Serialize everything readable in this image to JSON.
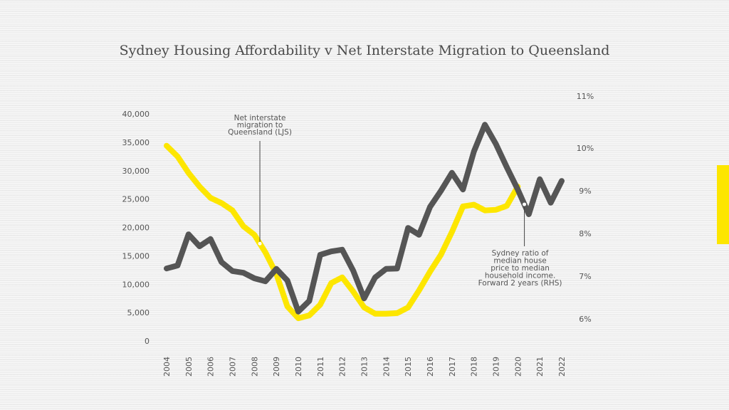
{
  "chart_data": {
    "type": "line",
    "title": "Sydney Housing Affordability v Net Interstate Migration to Queensland",
    "xlabel": "",
    "ylabel_left": "",
    "ylabel_right": "",
    "x_ticks": [
      "2004",
      "2005",
      "2006",
      "2007",
      "2008",
      "2009",
      "2010",
      "2011",
      "2012",
      "2013",
      "2014",
      "2015",
      "2016",
      "2017",
      "2018",
      "2019",
      "2020",
      "2021",
      "2022"
    ],
    "x_range": [
      2004,
      2022
    ],
    "y_left": {
      "range": [
        0,
        40000
      ],
      "ticks": [
        0,
        5000,
        10000,
        15000,
        20000,
        25000,
        30000,
        35000,
        40000
      ],
      "tick_labels": [
        "0",
        "5,000",
        "10,000",
        "15,000",
        "20,000",
        "25,000",
        "30,000",
        "35,000",
        "40,000"
      ]
    },
    "y_right": {
      "range": [
        6,
        11
      ],
      "ticks": [
        6,
        7,
        8,
        9,
        10,
        11
      ],
      "tick_labels": [
        "6%",
        "7%",
        "8%",
        "9%",
        "10%",
        "11%"
      ]
    },
    "grid": false,
    "legend": "none (inline annotations)",
    "series": [
      {
        "name": "Net interstate migration to Queensland (LJS)",
        "axis": "left",
        "color": "#fde600",
        "x": [
          2004.0,
          2004.5,
          2005.0,
          2005.5,
          2006.0,
          2006.5,
          2007.0,
          2007.5,
          2008.0,
          2008.5,
          2009.0,
          2009.5,
          2010.0,
          2010.5,
          2011.0,
          2011.5,
          2012.0,
          2012.5,
          2013.0,
          2013.5,
          2014.0,
          2014.5,
          2015.0,
          2015.5,
          2016.0,
          2016.5,
          2017.0,
          2017.5,
          2018.0,
          2018.5,
          2019.0,
          2019.5,
          2020.0
        ],
        "values": [
          34400,
          32500,
          29600,
          27200,
          25200,
          24300,
          23000,
          20200,
          18700,
          15600,
          11800,
          6100,
          4000,
          4500,
          6400,
          10200,
          11200,
          8700,
          5900,
          4800,
          4800,
          4900,
          5900,
          8900,
          12200,
          15200,
          19200,
          23700,
          24000,
          23000,
          23100,
          23800,
          27200
        ]
      },
      {
        "name": "Sydney ratio of median house price to median household income. Forward 2 years (RHS)",
        "axis": "right",
        "color": "#555555",
        "x": [
          2004.0,
          2004.5,
          2005.0,
          2005.5,
          2006.0,
          2006.5,
          2007.0,
          2007.5,
          2008.0,
          2008.5,
          2009.0,
          2009.5,
          2010.0,
          2010.5,
          2011.0,
          2011.5,
          2012.0,
          2012.5,
          2013.0,
          2013.5,
          2014.0,
          2014.5,
          2015.0,
          2015.5,
          2016.0,
          2016.5,
          2017.0,
          2017.5,
          2018.0,
          2018.5,
          2019.0,
          2019.5,
          2020.0,
          2020.5,
          2021.0,
          2021.5,
          2022.0
        ],
        "values": [
          7.18,
          7.25,
          7.98,
          7.7,
          7.87,
          7.33,
          7.12,
          7.08,
          6.95,
          6.88,
          7.17,
          6.9,
          6.17,
          6.42,
          7.5,
          7.58,
          7.62,
          7.13,
          6.48,
          6.97,
          7.17,
          7.18,
          8.13,
          7.97,
          8.62,
          9.0,
          9.42,
          9.03,
          9.92,
          10.45,
          10.08,
          9.55,
          9.03,
          8.45,
          9.27,
          8.72,
          9.23
        ]
      }
    ],
    "annotations": [
      {
        "series": 0,
        "lines": [
          "Net interstate",
          "migration to",
          "Queensland (LJS)"
        ],
        "anchor_x": 2008.25
      },
      {
        "series": 1,
        "lines": [
          "Sydney ratio of",
          "median house",
          "price to median",
          "household income.",
          "Forward 2 years (RHS)"
        ],
        "anchor_x": 2020.3
      }
    ]
  }
}
